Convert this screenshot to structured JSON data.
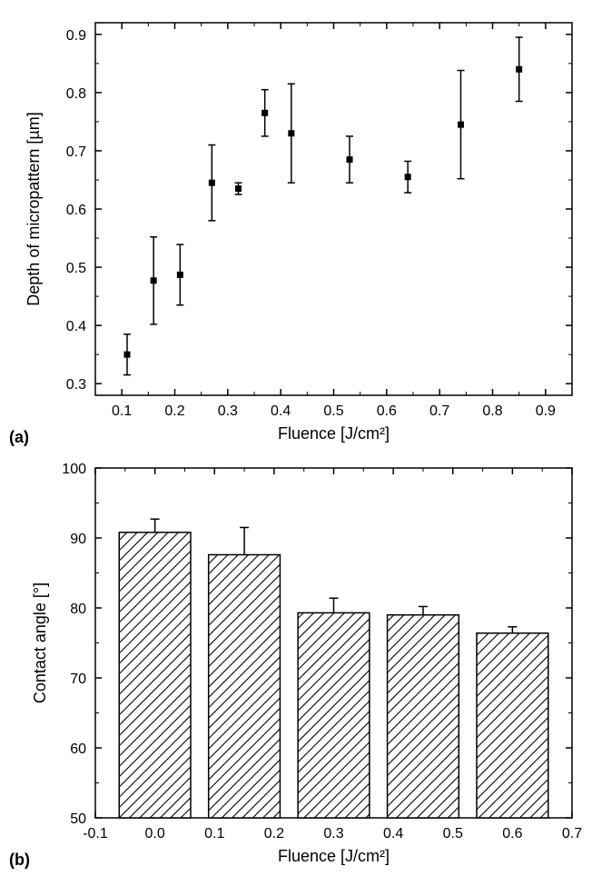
{
  "panelA": {
    "type": "scatter",
    "label": "(a)",
    "xlabel": "Fluence [J/cm²]",
    "ylabel": "Depth of micropattern [µm]",
    "xlim": [
      0.05,
      0.95
    ],
    "ylim": [
      0.28,
      0.92
    ],
    "xticks_major": [
      0.1,
      0.2,
      0.3,
      0.4,
      0.5,
      0.6,
      0.7,
      0.8,
      0.9
    ],
    "yticks_major": [
      0.3,
      0.4,
      0.5,
      0.6,
      0.7,
      0.8,
      0.9
    ],
    "marker_size": 7,
    "marker_color": "#000000",
    "error_cap_width": 8,
    "background_color": "#ffffff",
    "axis_color": "#000000",
    "label_fontsize": 18,
    "tick_fontsize": 16,
    "data": [
      {
        "x": 0.11,
        "y": 0.35,
        "err": 0.035
      },
      {
        "x": 0.16,
        "y": 0.477,
        "err": 0.075
      },
      {
        "x": 0.21,
        "y": 0.487,
        "err": 0.052
      },
      {
        "x": 0.27,
        "y": 0.645,
        "err": 0.065
      },
      {
        "x": 0.32,
        "y": 0.635,
        "err": 0.01
      },
      {
        "x": 0.37,
        "y": 0.765,
        "err": 0.04
      },
      {
        "x": 0.42,
        "y": 0.73,
        "err": 0.085
      },
      {
        "x": 0.53,
        "y": 0.685,
        "err": 0.04
      },
      {
        "x": 0.64,
        "y": 0.655,
        "err": 0.027
      },
      {
        "x": 0.74,
        "y": 0.745,
        "err": 0.093
      },
      {
        "x": 0.85,
        "y": 0.84,
        "err": 0.055
      }
    ]
  },
  "panelB": {
    "type": "bar",
    "label": "(b)",
    "xlabel": "Fluence [J/cm²]",
    "ylabel": "Contact angle [°]",
    "xlim": [
      -0.1,
      0.7
    ],
    "ylim": [
      50,
      100
    ],
    "xticks_major": [
      -0.1,
      0.0,
      0.1,
      0.2,
      0.3,
      0.4,
      0.5,
      0.6,
      0.7
    ],
    "yticks_major": [
      50,
      60,
      70,
      80,
      90,
      100
    ],
    "bar_width": 0.12,
    "bar_hatch": "diagonal",
    "bar_stroke": "#000000",
    "error_cap_width": 10,
    "background_color": "#ffffff",
    "axis_color": "#000000",
    "label_fontsize": 18,
    "tick_fontsize": 16,
    "data": [
      {
        "x": 0.0,
        "y": 90.8,
        "err": 1.9
      },
      {
        "x": 0.15,
        "y": 87.6,
        "err": 3.9
      },
      {
        "x": 0.3,
        "y": 79.3,
        "err": 2.1
      },
      {
        "x": 0.45,
        "y": 79.0,
        "err": 1.2
      },
      {
        "x": 0.6,
        "y": 76.4,
        "err": 0.9
      }
    ]
  }
}
